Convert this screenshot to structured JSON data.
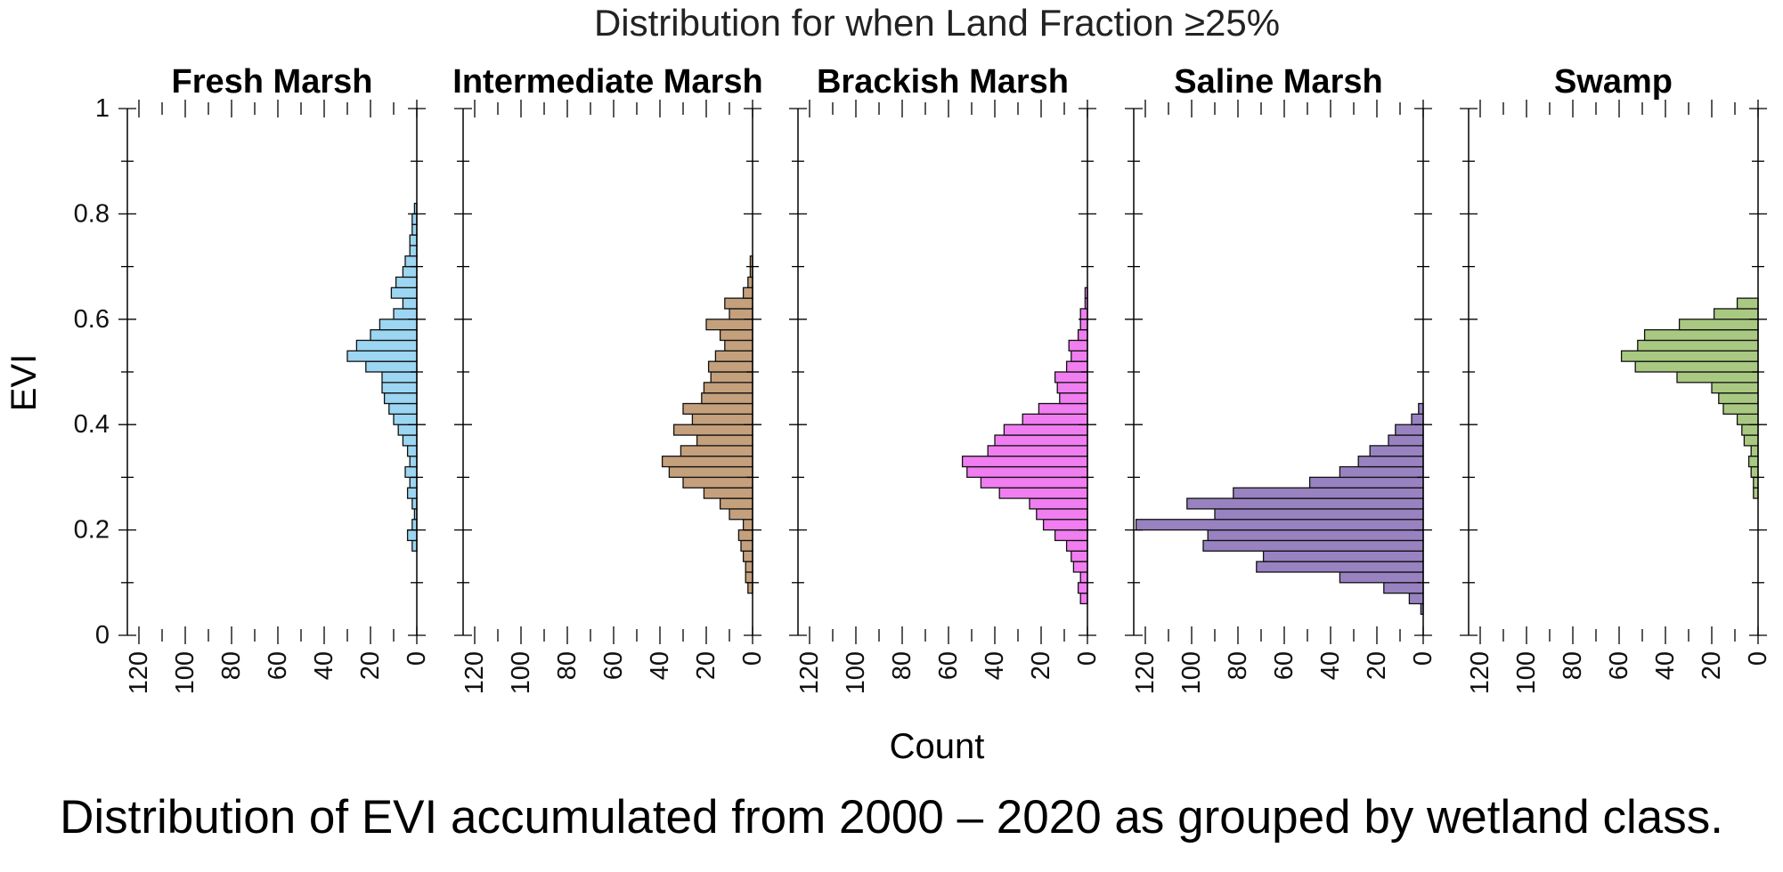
{
  "figure": {
    "suptitle": "Distribution for when Land Fraction ≥25%",
    "caption": "Distribution of EVI accumulated from 2000 – 2020 as grouped by wetland class."
  },
  "chart_data": {
    "type": "bar",
    "orientation": "horizontal",
    "title": "Distribution for when Land Fraction ≥25%",
    "xlabel": "Count",
    "ylabel": "EVI",
    "xlim": [
      125,
      0
    ],
    "ylim": [
      0,
      1
    ],
    "x_ticks": [
      "120",
      "100",
      "80",
      "60",
      "40",
      "20",
      "0"
    ],
    "y_ticks": [
      "0",
      "0.2",
      "0.4",
      "0.6",
      "0.8",
      "1"
    ],
    "bin_width": 0.02,
    "grid": false,
    "panels": [
      {
        "name": "Fresh Marsh",
        "color": "#9cd6f2",
        "bin_lows": [
          0.16,
          0.18,
          0.2,
          0.22,
          0.24,
          0.26,
          0.28,
          0.3,
          0.32,
          0.34,
          0.36,
          0.38,
          0.4,
          0.42,
          0.44,
          0.46,
          0.48,
          0.5,
          0.52,
          0.54,
          0.56,
          0.58,
          0.6,
          0.62,
          0.64,
          0.66,
          0.68,
          0.7,
          0.72,
          0.74,
          0.76,
          0.78,
          0.8,
          0.82
        ],
        "counts": [
          2,
          4,
          2,
          1,
          2,
          4,
          3,
          5,
          3,
          4,
          6,
          8,
          10,
          12,
          14,
          15,
          15,
          22,
          30,
          26,
          20,
          16,
          10,
          6,
          11,
          9,
          6,
          5,
          3,
          3,
          2,
          2,
          1,
          0
        ]
      },
      {
        "name": "Intermediate Marsh",
        "color": "#c4a07c",
        "bin_lows": [
          0.08,
          0.1,
          0.12,
          0.14,
          0.16,
          0.18,
          0.2,
          0.22,
          0.24,
          0.26,
          0.28,
          0.3,
          0.32,
          0.34,
          0.36,
          0.38,
          0.4,
          0.42,
          0.44,
          0.46,
          0.48,
          0.5,
          0.52,
          0.54,
          0.56,
          0.58,
          0.6,
          0.62,
          0.64,
          0.66,
          0.68,
          0.7,
          0.72
        ],
        "counts": [
          2,
          3,
          3,
          4,
          5,
          6,
          4,
          10,
          14,
          21,
          30,
          36,
          39,
          31,
          24,
          34,
          26,
          30,
          22,
          21,
          18,
          19,
          16,
          12,
          14,
          20,
          10,
          12,
          4,
          2,
          1,
          1,
          0
        ]
      },
      {
        "name": "Brackish Marsh",
        "color": "#f07ef0",
        "bin_lows": [
          0.06,
          0.08,
          0.1,
          0.12,
          0.14,
          0.16,
          0.18,
          0.2,
          0.22,
          0.24,
          0.26,
          0.28,
          0.3,
          0.32,
          0.34,
          0.36,
          0.38,
          0.4,
          0.42,
          0.44,
          0.46,
          0.48,
          0.5,
          0.52,
          0.54,
          0.56,
          0.58,
          0.6,
          0.62,
          0.64
        ],
        "counts": [
          3,
          4,
          3,
          6,
          7,
          9,
          14,
          19,
          22,
          25,
          38,
          46,
          52,
          54,
          43,
          40,
          36,
          28,
          21,
          12,
          13,
          14,
          9,
          7,
          8,
          4,
          3,
          3,
          1,
          1
        ]
      },
      {
        "name": "Saline Marsh",
        "color": "#9882c0",
        "bin_lows": [
          0.04,
          0.06,
          0.08,
          0.1,
          0.12,
          0.14,
          0.16,
          0.18,
          0.2,
          0.22,
          0.24,
          0.26,
          0.28,
          0.3,
          0.32,
          0.34,
          0.36,
          0.38,
          0.4,
          0.42
        ],
        "counts": [
          1,
          6,
          17,
          36,
          72,
          69,
          95,
          93,
          124,
          90,
          102,
          82,
          49,
          36,
          28,
          23,
          15,
          12,
          5,
          2
        ]
      },
      {
        "name": "Swamp",
        "color": "#a9c982",
        "bin_lows": [
          0.24,
          0.26,
          0.28,
          0.3,
          0.32,
          0.34,
          0.36,
          0.38,
          0.4,
          0.42,
          0.44,
          0.46,
          0.48,
          0.5,
          0.52,
          0.54,
          0.56,
          0.58,
          0.6,
          0.62
        ],
        "counts": [
          0,
          2,
          2,
          3,
          4,
          3,
          6,
          7,
          9,
          15,
          17,
          20,
          35,
          53,
          59,
          52,
          49,
          34,
          19,
          9
        ]
      }
    ]
  }
}
